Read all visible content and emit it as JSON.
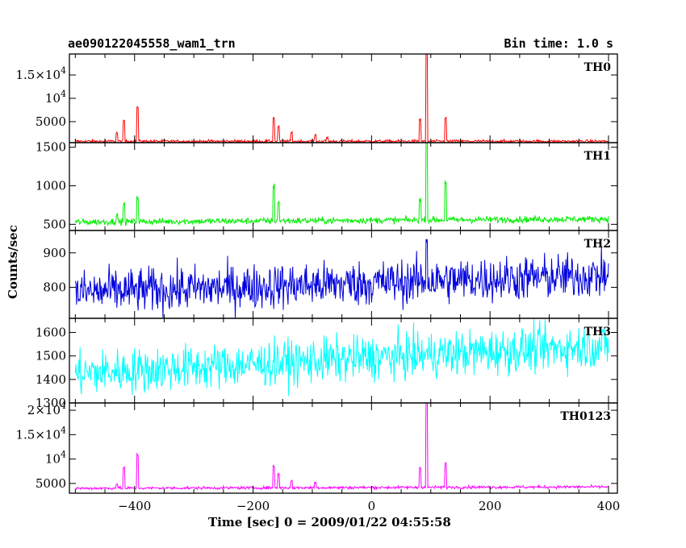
{
  "header": {
    "title": "ae090122045558_wam1_trn",
    "bin_time": "Bin time: 1.0 s"
  },
  "chart_data": {
    "type": "line",
    "xlabel": "Time [sec] 0 = 2009/01/22 04:55:58",
    "ylabel": "Counts/sec",
    "xlim": [
      -510,
      415
    ],
    "x_ticks": [
      -400,
      -200,
      0,
      200,
      400
    ],
    "x_range": [
      -500,
      400
    ],
    "panels": [
      {
        "name": "TH0",
        "color": "#ff0000",
        "ylim": [
          500,
          19500
        ],
        "yticks": [
          {
            "value": 5000,
            "label": "5000"
          },
          {
            "value": 10000,
            "label": "10^4"
          },
          {
            "value": 15000,
            "label": "1.5×10^4"
          }
        ],
        "baseline": 800,
        "noise": 250,
        "trend": 0,
        "spikes": [
          [
            -430,
            1800
          ],
          [
            -418,
            4400
          ],
          [
            -395,
            7300
          ],
          [
            -165,
            5000
          ],
          [
            -157,
            3200
          ],
          [
            -135,
            1800
          ],
          [
            -95,
            1300
          ],
          [
            -75,
            800
          ],
          [
            82,
            4700
          ],
          [
            93,
            19500
          ],
          [
            125,
            5100
          ]
        ]
      },
      {
        "name": "TH1",
        "color": "#00ee00",
        "ylim": [
          420,
          1560
        ],
        "yticks": [
          {
            "value": 500,
            "label": "500"
          },
          {
            "value": 1000,
            "label": "1000"
          },
          {
            "value": 1500,
            "label": "1500"
          }
        ],
        "baseline": 530,
        "noise": 35,
        "trend": 40,
        "spikes": [
          [
            -430,
            100
          ],
          [
            -418,
            230
          ],
          [
            -395,
            330
          ],
          [
            -165,
            450
          ],
          [
            -157,
            250
          ],
          [
            82,
            280
          ],
          [
            93,
            1050
          ],
          [
            125,
            490
          ]
        ]
      },
      {
        "name": "TH2",
        "color": "#0000dd",
        "ylim": [
          710,
          965
        ],
        "yticks": [
          {
            "value": 800,
            "label": "800"
          },
          {
            "value": 900,
            "label": "900"
          }
        ],
        "baseline": 785,
        "noise": 55,
        "trend": 50,
        "spikes": [
          [
            93,
            130
          ]
        ]
      },
      {
        "name": "TH3",
        "color": "#00ffff",
        "ylim": [
          1300,
          1660
        ],
        "yticks": [
          {
            "value": 1300,
            "label": "1300"
          },
          {
            "value": 1400,
            "label": "1400"
          },
          {
            "value": 1500,
            "label": "1500"
          },
          {
            "value": 1600,
            "label": "1600"
          }
        ],
        "baseline": 1425,
        "noise": 80,
        "trend": 120,
        "spikes": []
      },
      {
        "name": "TH0123",
        "color": "#ff00ff",
        "ylim": [
          3000,
          21500
        ],
        "yticks": [
          {
            "value": 5000,
            "label": "5000"
          },
          {
            "value": 10000,
            "label": "10^4"
          },
          {
            "value": 15000,
            "label": "1.5×10^4"
          },
          {
            "value": 20000,
            "label": "2×10^4"
          }
        ],
        "baseline": 4000,
        "noise": 250,
        "trend": 300,
        "spikes": [
          [
            -430,
            1000
          ],
          [
            -418,
            4200
          ],
          [
            -395,
            6800
          ],
          [
            -165,
            4500
          ],
          [
            -157,
            2800
          ],
          [
            -135,
            1300
          ],
          [
            -95,
            1100
          ],
          [
            82,
            4200
          ],
          [
            93,
            18500
          ],
          [
            125,
            4800
          ]
        ]
      }
    ]
  }
}
